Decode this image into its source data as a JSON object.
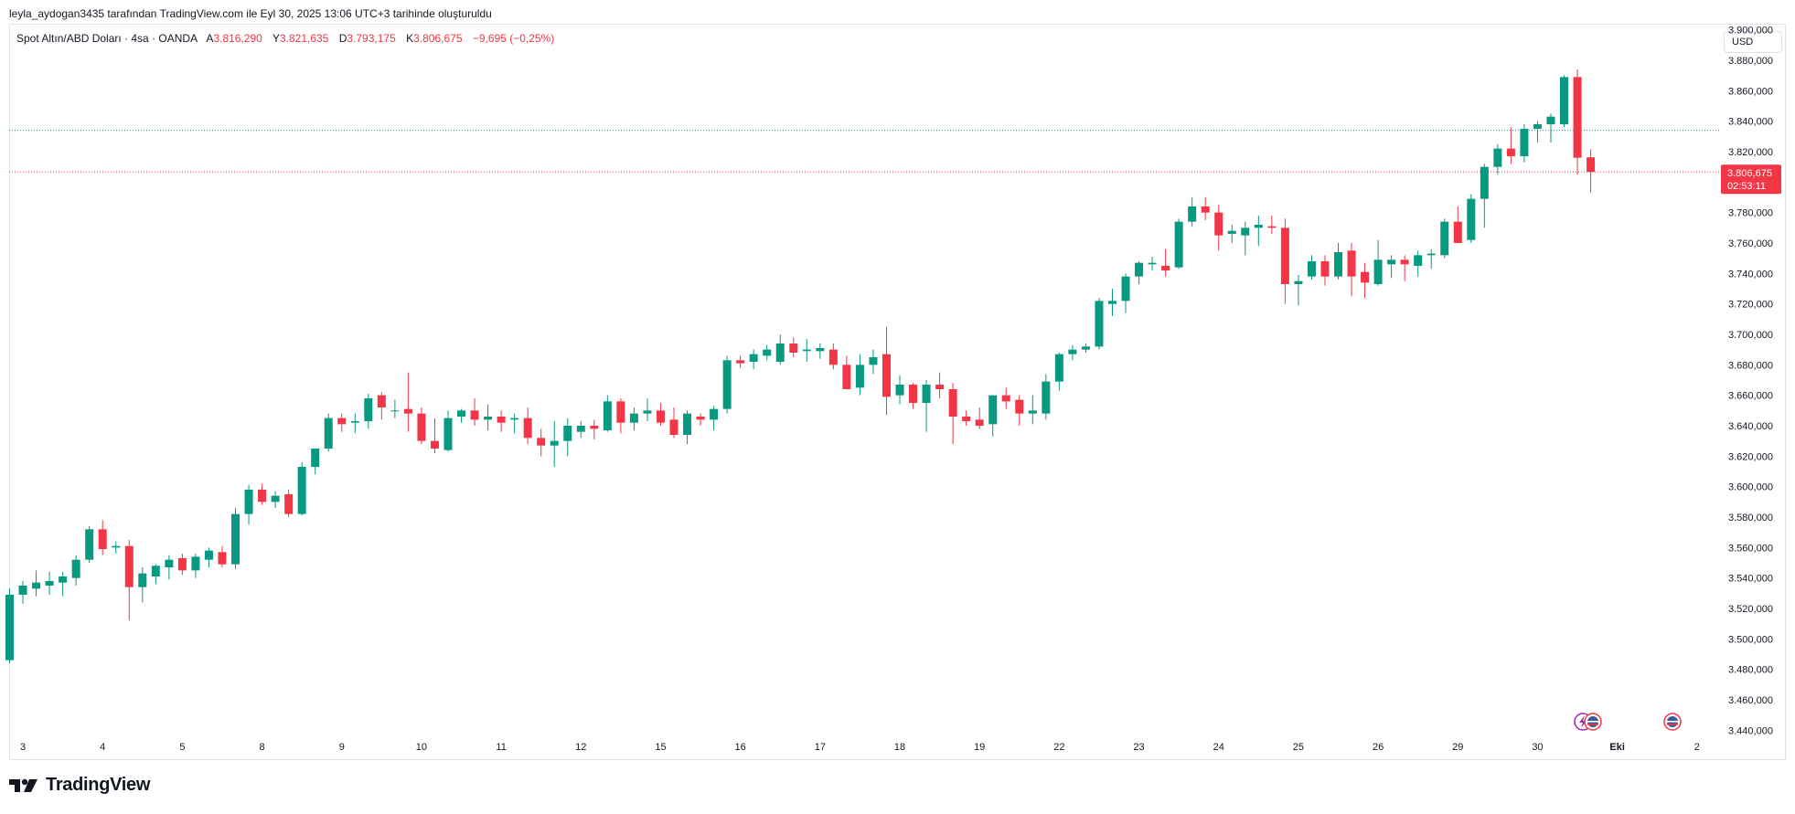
{
  "header": {
    "attribution": "leyla_aydogan3435 tarafından TradingView.com ile Eyl 30, 2025 13:06 UTC+3 tarihinde oluşturuldu"
  },
  "legend": {
    "symbol": "Spot Altın/ABD Doları · 4sa · OANDA",
    "open_label": "A",
    "open": "3.816,290",
    "high_label": "Y",
    "high": "3.821,635",
    "low_label": "D",
    "low": "3.793,175",
    "close_label": "K",
    "close": "3.806,675",
    "change": "−9,695 (−0,25%)"
  },
  "currency_button": "USD",
  "price_badge": {
    "price": "3.806,675",
    "countdown": "02:53:11"
  },
  "brand": {
    "name": "TradingView"
  },
  "colors": {
    "up": "#089981",
    "down": "#f23645",
    "grid": "#e0e3eb",
    "high_line": "#089981",
    "last_line": "#f23645"
  },
  "chart_data": {
    "type": "candlestick",
    "y_axis_labels": [
      "3.440,000",
      "3.460,000",
      "3.480,000",
      "3.500,000",
      "3.520,000",
      "3.540,000",
      "3.560,000",
      "3.580,000",
      "3.600,000",
      "3.620,000",
      "3.640,000",
      "3.660,000",
      "3.680,000",
      "3.700,000",
      "3.720,000",
      "3.740,000",
      "3.760,000",
      "3.780,000",
      "3.800,000",
      "3.820,000",
      "3.840,000",
      "3.860,000",
      "3.880,000",
      "3.900,000"
    ],
    "y_axis_values": [
      3440,
      3460,
      3480,
      3500,
      3520,
      3540,
      3560,
      3580,
      3600,
      3620,
      3640,
      3660,
      3680,
      3700,
      3720,
      3740,
      3760,
      3780,
      3800,
      3820,
      3840,
      3860,
      3880,
      3900
    ],
    "ylim": [
      3436,
      3904
    ],
    "x_axis_labels": [
      "3",
      "4",
      "5",
      "8",
      "9",
      "10",
      "11",
      "12",
      "15",
      "16",
      "17",
      "18",
      "19",
      "22",
      "23",
      "24",
      "25",
      "26",
      "29",
      "30",
      "Eki",
      "2"
    ],
    "x_axis_label_index": [
      1,
      7,
      13,
      19,
      25,
      31,
      37,
      43,
      49,
      55,
      61,
      67,
      73,
      79,
      85,
      91,
      97,
      103,
      109,
      115,
      121,
      127
    ],
    "reference_lines": {
      "dotted_green": 3834,
      "dotted_red_last": 3806.675
    },
    "candles": [
      [
        3486,
        3533,
        3484,
        3529
      ],
      [
        3529,
        3538,
        3523,
        3535
      ],
      [
        3533,
        3545,
        3528,
        3537
      ],
      [
        3535,
        3544,
        3529,
        3538
      ],
      [
        3537,
        3544,
        3528,
        3541
      ],
      [
        3540,
        3555,
        3535,
        3552
      ],
      [
        3552,
        3574,
        3550,
        3572
      ],
      [
        3572,
        3578,
        3555,
        3559
      ],
      [
        3560,
        3564,
        3556,
        3561
      ],
      [
        3561,
        3565,
        3512,
        3534
      ],
      [
        3534,
        3547,
        3524,
        3543
      ],
      [
        3541,
        3549,
        3536,
        3548
      ],
      [
        3547,
        3555,
        3539,
        3552
      ],
      [
        3553,
        3556,
        3542,
        3545
      ],
      [
        3545,
        3556,
        3540,
        3554
      ],
      [
        3552,
        3560,
        3547,
        3558
      ],
      [
        3557,
        3561,
        3547,
        3549
      ],
      [
        3549,
        3586,
        3546,
        3582
      ],
      [
        3582,
        3601,
        3575,
        3598
      ],
      [
        3598,
        3602,
        3588,
        3590
      ],
      [
        3590,
        3597,
        3586,
        3594
      ],
      [
        3595,
        3598,
        3580,
        3582
      ],
      [
        3582,
        3616,
        3581,
        3613
      ],
      [
        3613,
        3624,
        3608,
        3625
      ],
      [
        3625,
        3648,
        3623,
        3645
      ],
      [
        3645,
        3648,
        3636,
        3641
      ],
      [
        3642,
        3648,
        3635,
        3643
      ],
      [
        3643,
        3661,
        3638,
        3658
      ],
      [
        3660,
        3662,
        3644,
        3652
      ],
      [
        3650,
        3657,
        3645,
        3650
      ],
      [
        3651,
        3675,
        3636,
        3648
      ],
      [
        3648,
        3652,
        3628,
        3630
      ],
      [
        3630,
        3645,
        3622,
        3625
      ],
      [
        3624,
        3650,
        3623,
        3645
      ],
      [
        3646,
        3651,
        3642,
        3650
      ],
      [
        3650,
        3658,
        3640,
        3644
      ],
      [
        3644,
        3654,
        3637,
        3646
      ],
      [
        3646,
        3650,
        3636,
        3642
      ],
      [
        3644,
        3648,
        3635,
        3645
      ],
      [
        3645,
        3652,
        3628,
        3632
      ],
      [
        3632,
        3638,
        3620,
        3627
      ],
      [
        3627,
        3643,
        3613,
        3630
      ],
      [
        3630,
        3645,
        3620,
        3640
      ],
      [
        3636,
        3643,
        3632,
        3640
      ],
      [
        3640,
        3644,
        3631,
        3638
      ],
      [
        3637,
        3660,
        3636,
        3656
      ],
      [
        3656,
        3658,
        3635,
        3642
      ],
      [
        3642,
        3652,
        3637,
        3648
      ],
      [
        3648,
        3658,
        3643,
        3650
      ],
      [
        3650,
        3655,
        3640,
        3642
      ],
      [
        3644,
        3652,
        3632,
        3634
      ],
      [
        3634,
        3650,
        3628,
        3648
      ],
      [
        3646,
        3648,
        3640,
        3644
      ],
      [
        3644,
        3653,
        3637,
        3651
      ],
      [
        3651,
        3686,
        3648,
        3683
      ],
      [
        3683,
        3686,
        3678,
        3681
      ],
      [
        3682,
        3690,
        3677,
        3687
      ],
      [
        3686,
        3693,
        3683,
        3690
      ],
      [
        3682,
        3700,
        3680,
        3694
      ],
      [
        3694,
        3698,
        3685,
        3688
      ],
      [
        3689,
        3697,
        3682,
        3690
      ],
      [
        3689,
        3694,
        3684,
        3691
      ],
      [
        3690,
        3694,
        3677,
        3680
      ],
      [
        3680,
        3686,
        3665,
        3664
      ],
      [
        3665,
        3687,
        3660,
        3680
      ],
      [
        3680,
        3690,
        3674,
        3685
      ],
      [
        3687,
        3705,
        3647,
        3659
      ],
      [
        3660,
        3673,
        3654,
        3667
      ],
      [
        3667,
        3668,
        3651,
        3655
      ],
      [
        3655,
        3670,
        3636,
        3667
      ],
      [
        3667,
        3675,
        3658,
        3664
      ],
      [
        3664,
        3668,
        3628,
        3646
      ],
      [
        3646,
        3650,
        3640,
        3643
      ],
      [
        3644,
        3652,
        3638,
        3640
      ],
      [
        3641,
        3660,
        3633,
        3660
      ],
      [
        3660,
        3665,
        3651,
        3656
      ],
      [
        3657,
        3660,
        3640,
        3648
      ],
      [
        3648,
        3660,
        3641,
        3650
      ],
      [
        3648,
        3674,
        3644,
        3669
      ],
      [
        3669,
        3688,
        3663,
        3687
      ],
      [
        3687,
        3693,
        3683,
        3690
      ],
      [
        3690,
        3694,
        3688,
        3692
      ],
      [
        3692,
        3724,
        3690,
        3722
      ],
      [
        3720,
        3730,
        3712,
        3722
      ],
      [
        3722,
        3740,
        3714,
        3738
      ],
      [
        3738,
        3748,
        3733,
        3747
      ],
      [
        3746,
        3751,
        3742,
        3747
      ],
      [
        3745,
        3756,
        3738,
        3742
      ],
      [
        3744,
        3776,
        3743,
        3774
      ],
      [
        3774,
        3790,
        3771,
        3784
      ],
      [
        3784,
        3790,
        3775,
        3780
      ],
      [
        3780,
        3785,
        3755,
        3765
      ],
      [
        3766,
        3772,
        3760,
        3768
      ],
      [
        3765,
        3774,
        3752,
        3770
      ],
      [
        3770,
        3778,
        3758,
        3772
      ],
      [
        3771,
        3778,
        3766,
        3770
      ],
      [
        3770,
        3776,
        3720,
        3733
      ],
      [
        3733,
        3739,
        3719,
        3735
      ],
      [
        3738,
        3752,
        3736,
        3748
      ],
      [
        3748,
        3752,
        3732,
        3738
      ],
      [
        3738,
        3760,
        3736,
        3754
      ],
      [
        3755,
        3760,
        3725,
        3738
      ],
      [
        3741,
        3747,
        3724,
        3734
      ],
      [
        3733,
        3762,
        3732,
        3749
      ],
      [
        3746,
        3752,
        3737,
        3749
      ],
      [
        3749,
        3752,
        3735,
        3746
      ],
      [
        3745,
        3755,
        3738,
        3752
      ],
      [
        3752,
        3756,
        3743,
        3753
      ],
      [
        3752,
        3776,
        3750,
        3774
      ],
      [
        3774,
        3784,
        3760,
        3760
      ],
      [
        3762,
        3792,
        3760,
        3789
      ],
      [
        3789,
        3812,
        3770,
        3810
      ],
      [
        3810,
        3825,
        3805,
        3822
      ],
      [
        3822,
        3836,
        3812,
        3817
      ],
      [
        3817,
        3838,
        3813,
        3835
      ],
      [
        3835,
        3840,
        3826,
        3838
      ],
      [
        3838,
        3845,
        3826,
        3843
      ],
      [
        3838,
        3870,
        3836,
        3869
      ],
      [
        3869,
        3874,
        3805,
        3816
      ],
      [
        3816.29,
        3821.635,
        3793.175,
        3806.675
      ]
    ]
  }
}
